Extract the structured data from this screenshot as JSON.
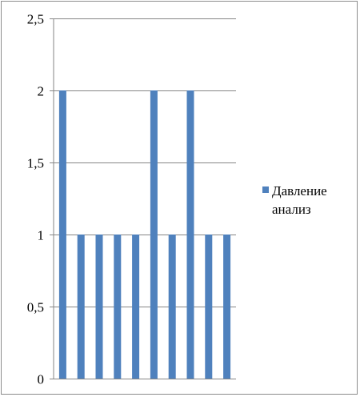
{
  "chart_data": {
    "type": "bar",
    "categories": [
      "",
      "",
      "",
      "",
      "",
      "",
      "",
      "",
      "",
      ""
    ],
    "series": [
      {
        "name": "Давление анализ",
        "values": [
          2,
          1,
          1,
          1,
          1,
          2,
          1,
          2,
          1,
          1
        ],
        "color": "#4f81bd"
      }
    ],
    "ylim": [
      0,
      2.5
    ],
    "yticks": [
      "0",
      "0,5",
      "1",
      "1,5",
      "2",
      "2,5"
    ],
    "grid": true,
    "legend": {
      "position": "right",
      "lines": [
        "Давление",
        "анализ"
      ]
    }
  }
}
